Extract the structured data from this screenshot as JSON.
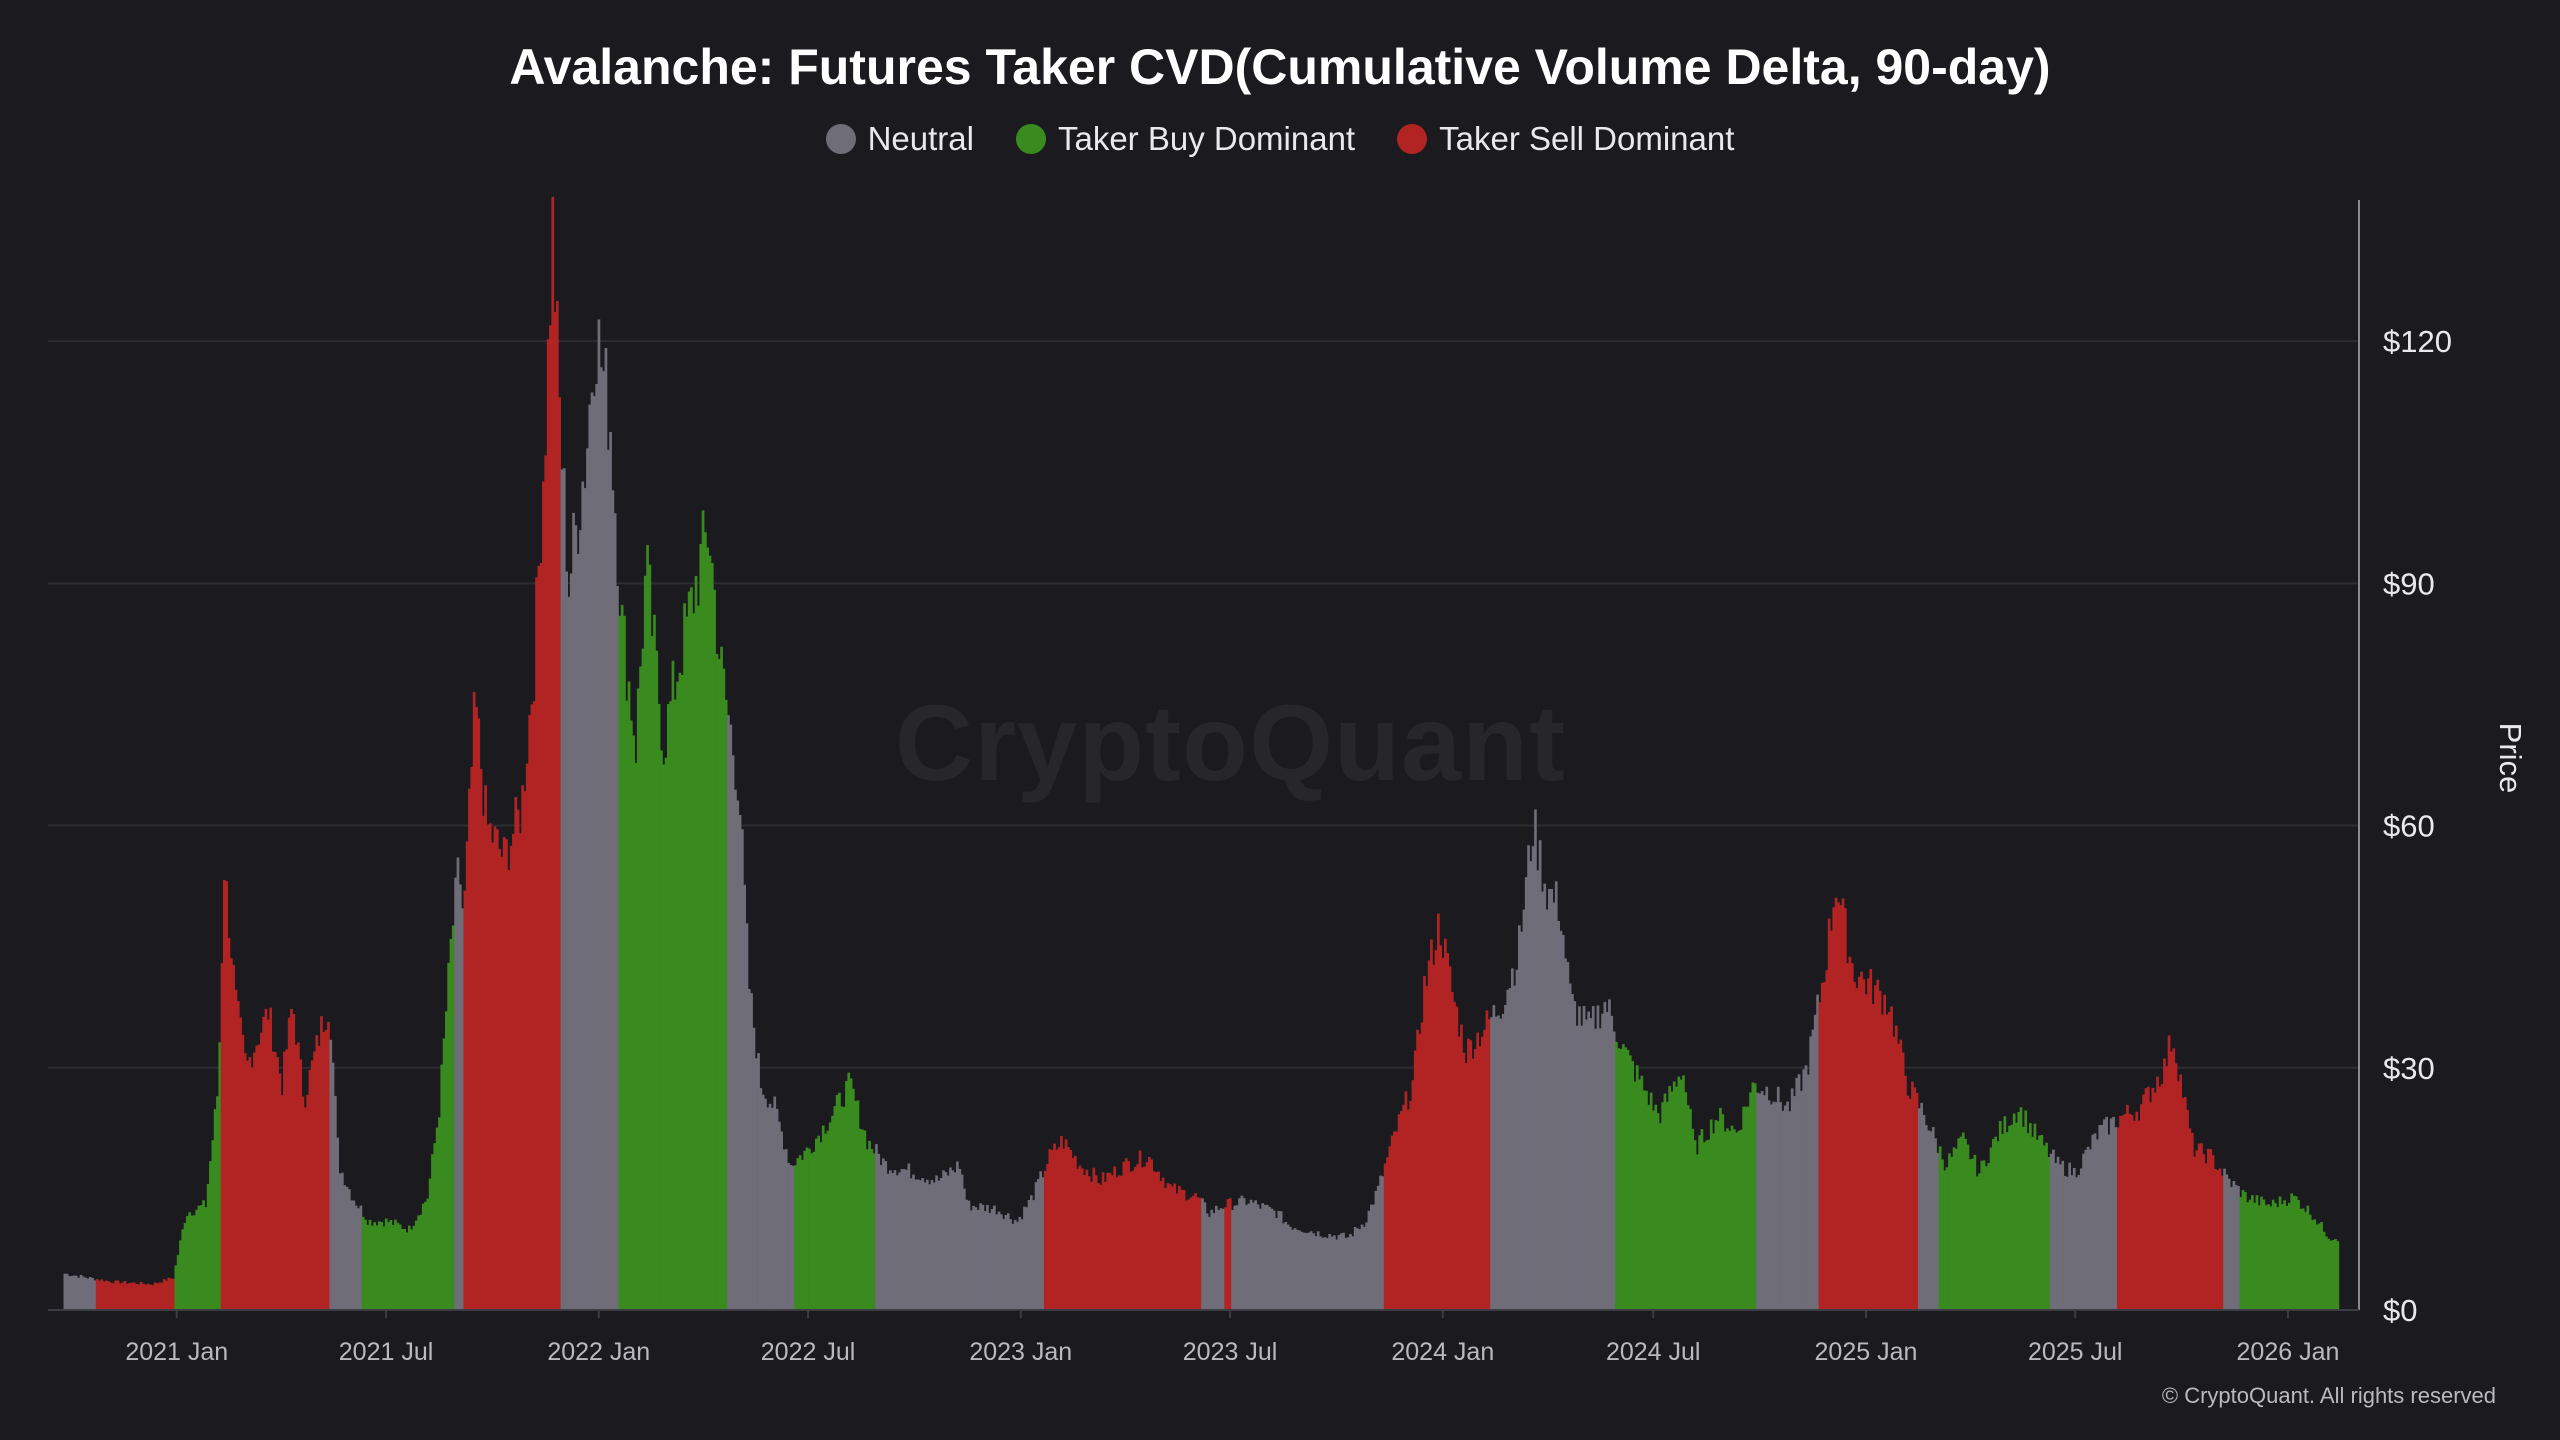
{
  "title": "Avalanche: Futures Taker CVD(Cumulative Volume Delta, 90-day)",
  "legend": [
    {
      "label": "Neutral",
      "color": "#6e6d78"
    },
    {
      "label": "Taker Buy Dominant",
      "color": "#3a8b1f"
    },
    {
      "label": "Taker Sell Dominant",
      "color": "#b22424"
    }
  ],
  "watermark": "CryptoQuant",
  "footer": "© CryptoQuant. All rights reserved",
  "chart_data": {
    "type": "bar",
    "title": "Avalanche: Futures Taker CVD(Cumulative Volume Delta, 90-day)",
    "ylabel": "Price",
    "ylim": [
      0,
      135
    ],
    "y_ticks": [
      0,
      30,
      60,
      90,
      120
    ],
    "y_tick_labels": [
      "$0",
      "$30",
      "$60",
      "$90",
      "$120"
    ],
    "x_tick_labels": [
      "2021 Jan",
      "2021 Jul",
      "2022 Jan",
      "2022 Jul",
      "2023 Jan",
      "2023 Jul",
      "2024 Jan",
      "2024 Jul",
      "2025 Jan",
      "2025 Jul",
      "2026 Jan"
    ],
    "x_tick_dates": [
      "2021-01-01",
      "2021-07-01",
      "2022-01-01",
      "2022-07-01",
      "2023-01-01",
      "2023-07-01",
      "2024-01-01",
      "2024-07-01",
      "2025-01-01",
      "2025-07-01",
      "2026-01-01"
    ],
    "x_range": [
      "2020-09-22",
      "2026-02-15"
    ],
    "grid": true,
    "legend_position": "top-center",
    "regime_colors": {
      "neutral": "#6e6d78",
      "buy": "#3a8b1f",
      "sell": "#b22424"
    },
    "price_points": [
      [
        "2020-09-25",
        4.5
      ],
      [
        "2020-10-15",
        4.0
      ],
      [
        "2020-11-05",
        3.5
      ],
      [
        "2020-12-10",
        3.2
      ],
      [
        "2020-12-28",
        4.0
      ],
      [
        "2021-01-08",
        12.0
      ],
      [
        "2021-01-25",
        13.0
      ],
      [
        "2021-02-05",
        28.0
      ],
      [
        "2021-02-10",
        55.0
      ],
      [
        "2021-02-20",
        38.0
      ],
      [
        "2021-03-01",
        30.0
      ],
      [
        "2021-03-20",
        37.0
      ],
      [
        "2021-04-01",
        28.0
      ],
      [
        "2021-04-10",
        38.0
      ],
      [
        "2021-04-20",
        26.0
      ],
      [
        "2021-05-05",
        35.0
      ],
      [
        "2021-05-12",
        38.0
      ],
      [
        "2021-05-20",
        18.0
      ],
      [
        "2021-06-01",
        14.0
      ],
      [
        "2021-06-15",
        11.0
      ],
      [
        "2021-07-01",
        11.0
      ],
      [
        "2021-07-20",
        10.0
      ],
      [
        "2021-08-05",
        14.0
      ],
      [
        "2021-08-15",
        25.0
      ],
      [
        "2021-08-25",
        45.0
      ],
      [
        "2021-09-01",
        55.0
      ],
      [
        "2021-09-05",
        48.0
      ],
      [
        "2021-09-15",
        75.0
      ],
      [
        "2021-09-25",
        60.0
      ],
      [
        "2021-10-10",
        56.0
      ],
      [
        "2021-10-25",
        62.0
      ],
      [
        "2021-11-05",
        80.0
      ],
      [
        "2021-11-15",
        110.0
      ],
      [
        "2021-11-21",
        134.0
      ],
      [
        "2021-11-28",
        108.0
      ],
      [
        "2021-12-05",
        90.0
      ],
      [
        "2021-12-20",
        106.0
      ],
      [
        "2021-12-28",
        122.0
      ],
      [
        "2022-01-10",
        110.0
      ],
      [
        "2022-01-20",
        85.0
      ],
      [
        "2022-02-01",
        70.0
      ],
      [
        "2022-02-10",
        92.0
      ],
      [
        "2022-02-25",
        70.0
      ],
      [
        "2022-03-10",
        80.0
      ],
      [
        "2022-03-25",
        90.0
      ],
      [
        "2022-04-05",
        97.0
      ],
      [
        "2022-04-15",
        80.0
      ],
      [
        "2022-05-01",
        65.0
      ],
      [
        "2022-05-10",
        40.0
      ],
      [
        "2022-05-20",
        28.0
      ],
      [
        "2022-06-01",
        25.0
      ],
      [
        "2022-06-15",
        18.0
      ],
      [
        "2022-07-01",
        20.0
      ],
      [
        "2022-07-20",
        24.0
      ],
      [
        "2022-08-05",
        28.0
      ],
      [
        "2022-08-20",
        21.0
      ],
      [
        "2022-09-05",
        18.0
      ],
      [
        "2022-10-01",
        17.0
      ],
      [
        "2022-10-20",
        16.0
      ],
      [
        "2022-11-08",
        18.0
      ],
      [
        "2022-11-15",
        13.0
      ],
      [
        "2022-12-10",
        12.5
      ],
      [
        "2022-12-28",
        11.0
      ],
      [
        "2023-01-10",
        14.0
      ],
      [
        "2023-01-25",
        19.0
      ],
      [
        "2023-02-05",
        21.0
      ],
      [
        "2023-02-20",
        18.0
      ],
      [
        "2023-03-10",
        16.0
      ],
      [
        "2023-04-01",
        18.0
      ],
      [
        "2023-04-20",
        19.0
      ],
      [
        "2023-05-10",
        15.0
      ],
      [
        "2023-06-01",
        14.0
      ],
      [
        "2023-06-12",
        12.0
      ],
      [
        "2023-06-25",
        13.0
      ],
      [
        "2023-07-15",
        13.5
      ],
      [
        "2023-08-10",
        12.0
      ],
      [
        "2023-08-20",
        10.5
      ],
      [
        "2023-09-15",
        9.5
      ],
      [
        "2023-10-10",
        9.0
      ],
      [
        "2023-10-25",
        11.0
      ],
      [
        "2023-11-05",
        15.0
      ],
      [
        "2023-11-20",
        22.0
      ],
      [
        "2023-12-05",
        28.0
      ],
      [
        "2023-12-15",
        40.0
      ],
      [
        "2023-12-28",
        48.0
      ],
      [
        "2024-01-10",
        38.0
      ],
      [
        "2024-01-20",
        32.0
      ],
      [
        "2024-02-05",
        35.0
      ],
      [
        "2024-02-20",
        38.0
      ],
      [
        "2024-03-05",
        44.0
      ],
      [
        "2024-03-18",
        60.0
      ],
      [
        "2024-03-30",
        52.0
      ],
      [
        "2024-04-10",
        50.0
      ],
      [
        "2024-04-20",
        38.0
      ],
      [
        "2024-05-05",
        35.0
      ],
      [
        "2024-05-20",
        38.0
      ],
      [
        "2024-06-05",
        32.0
      ],
      [
        "2024-06-20",
        28.0
      ],
      [
        "2024-07-05",
        24.0
      ],
      [
        "2024-07-25",
        30.0
      ],
      [
        "2024-08-05",
        20.0
      ],
      [
        "2024-08-25",
        24.0
      ],
      [
        "2024-09-10",
        22.0
      ],
      [
        "2024-09-25",
        28.0
      ],
      [
        "2024-10-10",
        27.0
      ],
      [
        "2024-10-25",
        25.0
      ],
      [
        "2024-11-10",
        30.0
      ],
      [
        "2024-11-25",
        42.0
      ],
      [
        "2024-12-05",
        53.0
      ],
      [
        "2024-12-20",
        42.0
      ],
      [
        "2025-01-05",
        40.0
      ],
      [
        "2025-01-20",
        38.0
      ],
      [
        "2025-02-05",
        28.0
      ],
      [
        "2025-02-20",
        24.0
      ],
      [
        "2025-03-10",
        18.0
      ],
      [
        "2025-03-25",
        21.0
      ],
      [
        "2025-04-08",
        17.0
      ],
      [
        "2025-04-25",
        22.0
      ],
      [
        "2025-05-12",
        25.0
      ],
      [
        "2025-05-25",
        22.0
      ],
      [
        "2025-06-15",
        18.0
      ],
      [
        "2025-06-30",
        17.0
      ],
      [
        "2025-07-20",
        22.0
      ],
      [
        "2025-08-10",
        24.0
      ],
      [
        "2025-08-25",
        25.0
      ],
      [
        "2025-09-15",
        30.0
      ],
      [
        "2025-09-22",
        34.0
      ],
      [
        "2025-10-10",
        20.0
      ],
      [
        "2025-10-25",
        19.0
      ],
      [
        "2025-11-10",
        16.0
      ],
      [
        "2025-11-25",
        14.0
      ],
      [
        "2025-12-15",
        13.0
      ],
      [
        "2026-01-05",
        14.0
      ],
      [
        "2026-01-20",
        12.0
      ],
      [
        "2026-02-05",
        9.0
      ],
      [
        "2026-02-12",
        9.0
      ]
    ],
    "regimes": [
      [
        "2020-09-22",
        "2020-10-22",
        "neutral"
      ],
      [
        "2020-10-22",
        "2020-12-30",
        "sell"
      ],
      [
        "2020-12-30",
        "2021-02-08",
        "buy"
      ],
      [
        "2021-02-08",
        "2021-05-12",
        "sell"
      ],
      [
        "2021-05-12",
        "2021-06-10",
        "neutral"
      ],
      [
        "2021-06-10",
        "2021-08-10",
        "buy"
      ],
      [
        "2021-08-10",
        "2021-08-28",
        "buy"
      ],
      [
        "2021-08-28",
        "2021-09-05",
        "neutral"
      ],
      [
        "2021-09-05",
        "2021-11-28",
        "sell"
      ],
      [
        "2021-11-28",
        "2022-01-18",
        "neutral"
      ],
      [
        "2022-01-18",
        "2022-04-22",
        "buy"
      ],
      [
        "2022-04-22",
        "2022-06-18",
        "neutral"
      ],
      [
        "2022-06-18",
        "2022-08-28",
        "buy"
      ],
      [
        "2022-08-28",
        "2023-01-20",
        "neutral"
      ],
      [
        "2023-01-20",
        "2023-06-05",
        "sell"
      ],
      [
        "2023-06-05",
        "2023-06-25",
        "neutral"
      ],
      [
        "2023-06-25",
        "2023-07-01",
        "sell"
      ],
      [
        "2023-07-01",
        "2023-11-10",
        "neutral"
      ],
      [
        "2023-11-10",
        "2024-02-10",
        "sell"
      ],
      [
        "2024-02-10",
        "2024-05-28",
        "neutral"
      ],
      [
        "2024-05-28",
        "2024-09-28",
        "buy"
      ],
      [
        "2024-09-28",
        "2024-10-10",
        "neutral"
      ],
      [
        "2024-10-10",
        "2024-11-20",
        "neutral"
      ],
      [
        "2024-11-20",
        "2025-02-15",
        "sell"
      ],
      [
        "2025-02-15",
        "2025-03-05",
        "neutral"
      ],
      [
        "2025-03-05",
        "2025-06-08",
        "buy"
      ],
      [
        "2025-06-08",
        "2025-08-05",
        "neutral"
      ],
      [
        "2025-08-05",
        "2025-10-01",
        "sell"
      ],
      [
        "2025-10-01",
        "2025-11-05",
        "sell"
      ],
      [
        "2025-11-05",
        "2025-11-20",
        "neutral"
      ],
      [
        "2025-11-20",
        "2026-02-15",
        "buy"
      ]
    ]
  }
}
